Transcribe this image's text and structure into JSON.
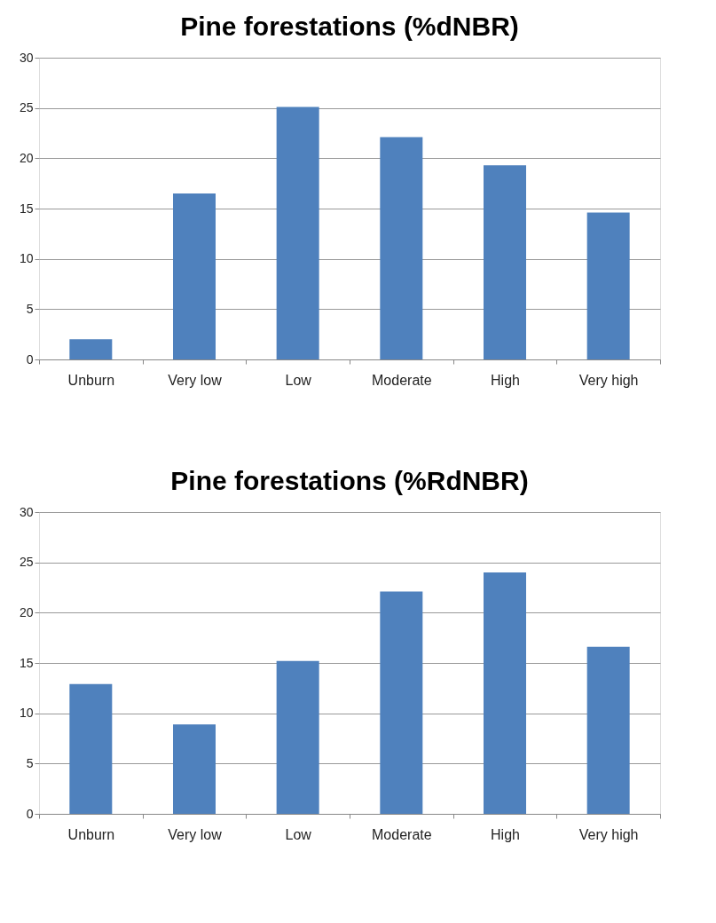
{
  "chart_data": [
    {
      "type": "bar",
      "title": "Pine forestations (%dNBR)",
      "categories": [
        "Unburn",
        "Very low",
        "Low",
        "Moderate",
        "High",
        "Very high"
      ],
      "values": [
        2.0,
        16.5,
        25.1,
        22.1,
        19.3,
        14.6
      ],
      "color": "#4f81bd",
      "ylim": [
        0,
        30
      ],
      "yticks": [
        0,
        5,
        10,
        15,
        20,
        25,
        30
      ],
      "grid": "y"
    },
    {
      "type": "bar",
      "title": "Pine forestations (%RdNBR)",
      "categories": [
        "Unburn",
        "Very low",
        "Low",
        "Moderate",
        "High",
        "Very high"
      ],
      "values": [
        12.9,
        8.9,
        15.2,
        22.1,
        24.0,
        16.6
      ],
      "color": "#4f81bd",
      "ylim": [
        0,
        30
      ],
      "yticks": [
        0,
        5,
        10,
        15,
        20,
        25,
        30
      ],
      "grid": "y"
    }
  ]
}
